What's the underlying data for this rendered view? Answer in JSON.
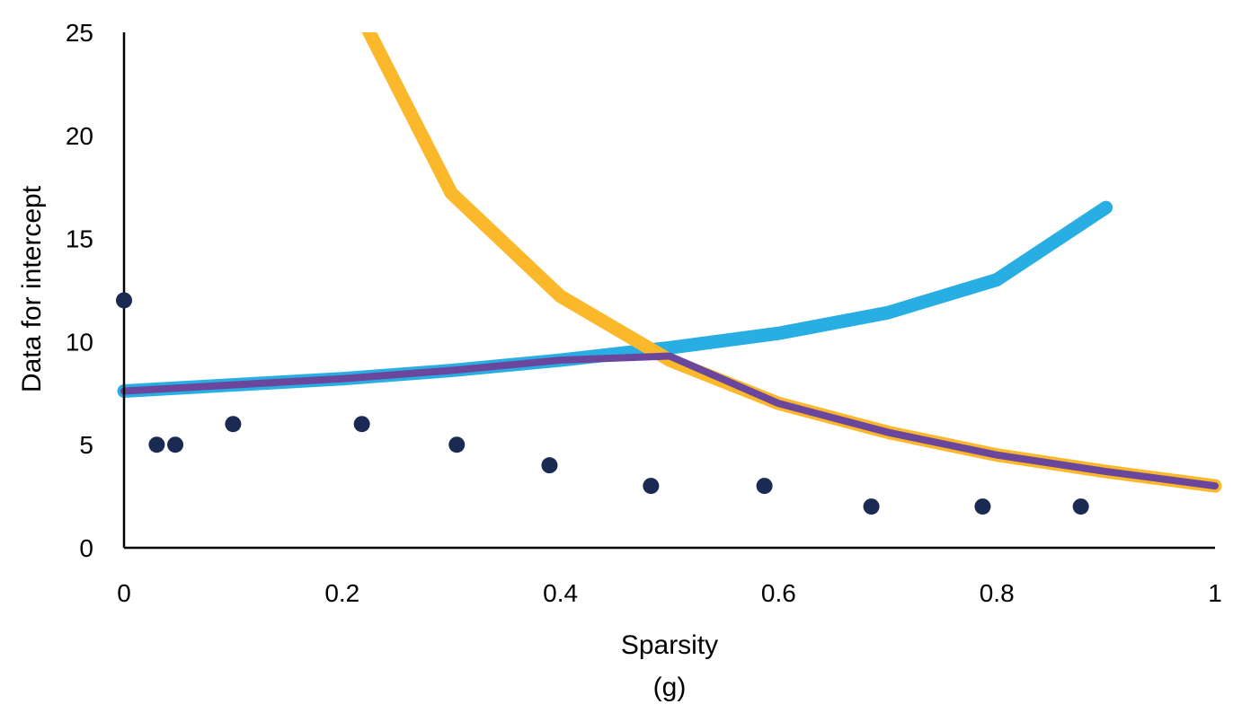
{
  "chart_data": {
    "type": "line",
    "title": "",
    "xlabel": "Sparsity",
    "xlabel_sub": "(g)",
    "ylabel": "Data for intercept",
    "xlim": [
      0,
      1
    ],
    "ylim": [
      0,
      25
    ],
    "x_ticks": [
      0,
      0.2,
      0.4,
      0.6,
      0.8,
      1
    ],
    "x_tick_labels": [
      "0",
      "0.2",
      "0.4",
      "0.6",
      "0.8",
      "1"
    ],
    "y_ticks": [
      0,
      5,
      10,
      15,
      20,
      25
    ],
    "y_tick_labels": [
      "0",
      "5",
      "10",
      "15",
      "20",
      "25"
    ],
    "grid": false,
    "legend": "none",
    "series": [
      {
        "name": "data-points",
        "kind": "scatter",
        "color": "#1b2a52",
        "x": [
          0,
          0.03,
          0.047,
          0.1,
          0.218,
          0.305,
          0.39,
          0.483,
          0.587,
          0.685,
          0.787,
          0.877
        ],
        "y": [
          12,
          5,
          5,
          6,
          6,
          5,
          4,
          3,
          3,
          2,
          2,
          2
        ]
      },
      {
        "name": "blue-curve",
        "kind": "line",
        "color": "#29aee3",
        "x": [
          0,
          0.1,
          0.2,
          0.3,
          0.4,
          0.5,
          0.6,
          0.7,
          0.8,
          0.9
        ],
        "y": [
          7.6,
          7.9,
          8.2,
          8.6,
          9.1,
          9.7,
          10.4,
          11.4,
          13.0,
          16.5
        ]
      },
      {
        "name": "orange-curve",
        "kind": "line",
        "color": "#fbb82a",
        "x": [
          0.22,
          0.3,
          0.4,
          0.5,
          0.6,
          0.7,
          0.8,
          0.9,
          1.0
        ],
        "y": [
          25.5,
          17.2,
          12.2,
          9.1,
          7.0,
          5.6,
          4.5,
          3.7,
          3.0
        ]
      },
      {
        "name": "purple-curve",
        "kind": "line",
        "color": "#6a479c",
        "x": [
          0,
          0.1,
          0.2,
          0.3,
          0.4,
          0.5,
          0.6,
          0.7,
          0.8,
          0.9,
          1.0
        ],
        "y": [
          7.6,
          7.9,
          8.2,
          8.6,
          9.1,
          9.3,
          7.0,
          5.6,
          4.5,
          3.7,
          3.0
        ]
      }
    ]
  }
}
